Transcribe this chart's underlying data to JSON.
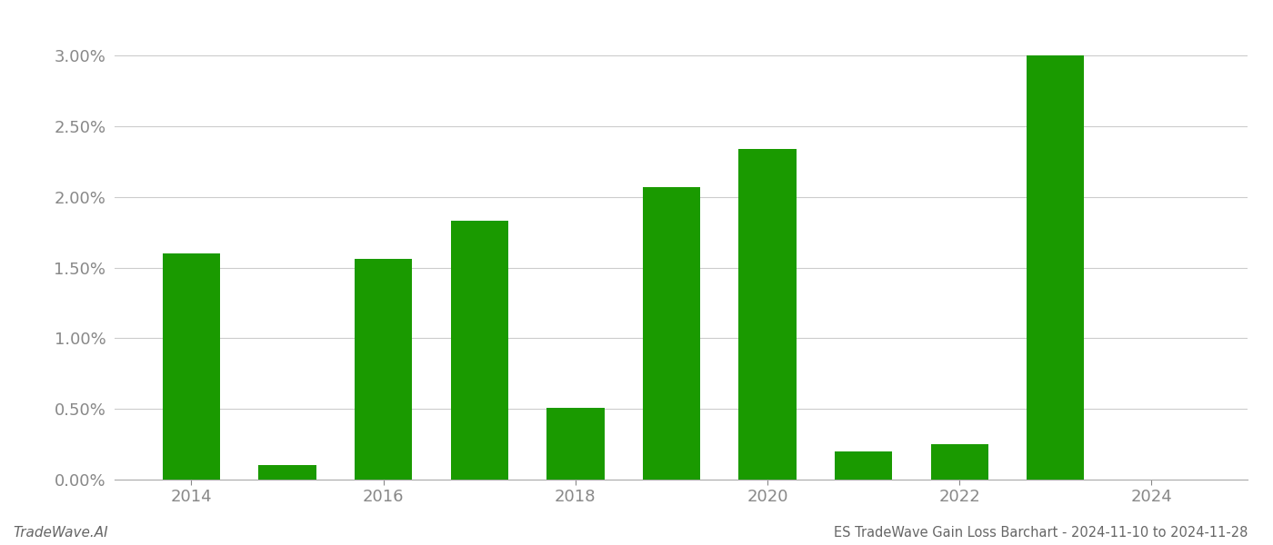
{
  "years": [
    2014,
    2015,
    2016,
    2017,
    2018,
    2019,
    2020,
    2021,
    2022,
    2023,
    2024
  ],
  "values": [
    0.016,
    0.001,
    0.0156,
    0.0183,
    0.0051,
    0.0207,
    0.0234,
    0.002,
    0.0025,
    0.03,
    0.0
  ],
  "bar_color": "#1a9a00",
  "background_color": "#ffffff",
  "title": "ES TradeWave Gain Loss Barchart - 2024-11-10 to 2024-11-28",
  "watermark": "TradeWave.AI",
  "ylim": [
    0.0,
    0.032
  ],
  "yticks": [
    0.0,
    0.005,
    0.01,
    0.015,
    0.02,
    0.025,
    0.03
  ],
  "ytick_labels": [
    "0.00%",
    "0.50%",
    "1.00%",
    "1.50%",
    "2.00%",
    "2.50%",
    "3.00%"
  ],
  "xtick_positions": [
    2014,
    2016,
    2018,
    2020,
    2022,
    2024
  ],
  "grid_color": "#cccccc",
  "axis_color": "#aaaaaa",
  "tick_color": "#888888",
  "font_color": "#666666",
  "bar_width": 0.6,
  "xlim": [
    2013.2,
    2025.0
  ]
}
